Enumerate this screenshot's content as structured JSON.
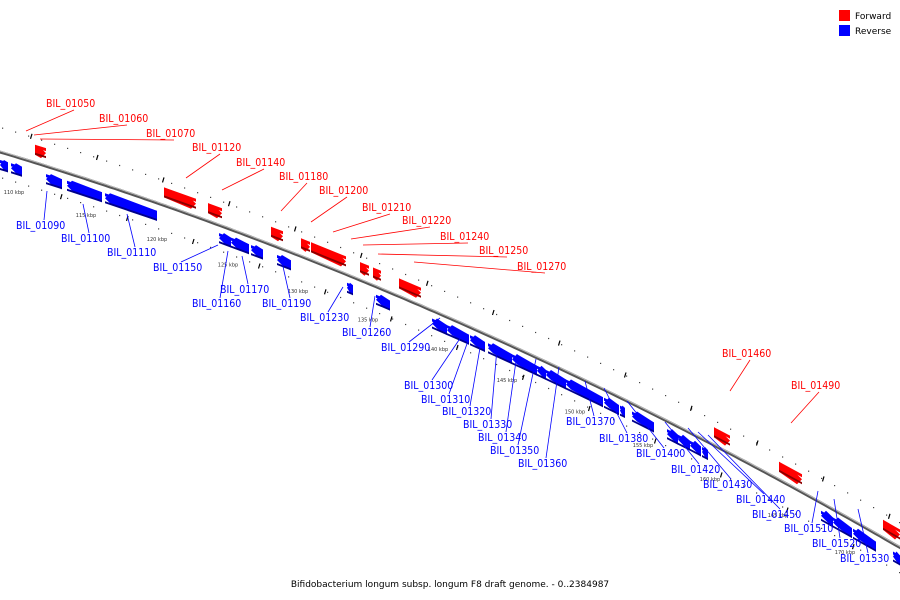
{
  "legend": {
    "forward": {
      "label": "Forward",
      "color": "#ff0000"
    },
    "reverse": {
      "label": "Reverse",
      "color": "#0000ff"
    }
  },
  "caption": "Bifidobacterium longum subsp. longum F8 draft genome. - 0..2384987",
  "scale_unit": "kbp",
  "scale_ticks": [
    110,
    115,
    120,
    125,
    130,
    135,
    140,
    145,
    150,
    155,
    160,
    165,
    170
  ],
  "forward_genes": [
    "BIL_01050",
    "BIL_01060",
    "BIL_01070",
    "BIL_01120",
    "BIL_01140",
    "BIL_01180",
    "BIL_01200",
    "BIL_01210",
    "BIL_01220",
    "BIL_01240",
    "BIL_01250",
    "BIL_01270",
    "BIL_01460",
    "BIL_01490"
  ],
  "reverse_genes": [
    "BIL_01090",
    "BIL_01100",
    "BIL_01110",
    "BIL_01150",
    "BIL_01160",
    "BIL_01170",
    "BIL_01190",
    "BIL_01230",
    "BIL_01260",
    "BIL_01290",
    "BIL_01300",
    "BIL_01310",
    "BIL_01320",
    "BIL_01330",
    "BIL_01340",
    "BIL_01350",
    "BIL_01360",
    "BIL_01370",
    "BIL_01380",
    "BIL_01400",
    "BIL_01420",
    "BIL_01430",
    "BIL_01440",
    "BIL_01450",
    "BIL_01510",
    "BIL_01520",
    "BIL_01530"
  ]
}
